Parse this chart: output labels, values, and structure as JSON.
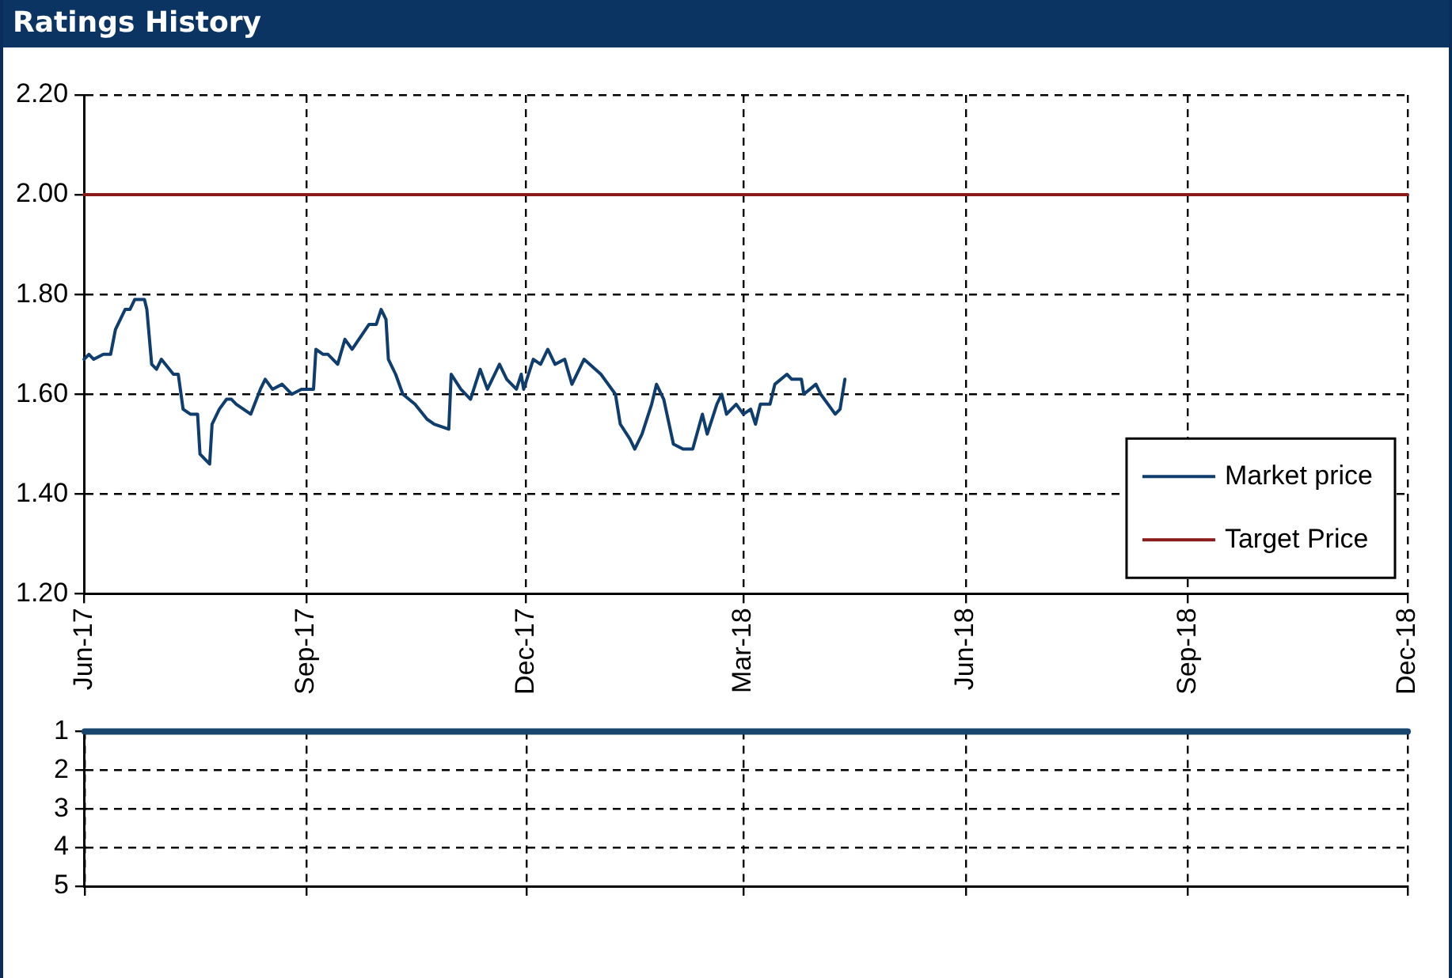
{
  "chart_data": [
    {
      "type": "line",
      "title": "Ratings History",
      "legend": "bottom right",
      "grid": true,
      "marker": "none",
      "line_style": "solid",
      "xlim": [
        "2017-06-01",
        "2018-12-01"
      ],
      "xticks": [
        {
          "value": "2017-06-01",
          "label": "Jun-17"
        },
        {
          "value": "2017-09-01",
          "label": "Sep-17"
        },
        {
          "value": "2017-12-01",
          "label": "Dec-17"
        },
        {
          "value": "2018-03-01",
          "label": "Mar-18"
        },
        {
          "value": "2018-06-01",
          "label": "Jun-18"
        },
        {
          "value": "2018-09-01",
          "label": "Sep-18"
        },
        {
          "value": "2018-12-01",
          "label": "Dec-18"
        }
      ],
      "ylim": [
        1.2,
        2.2
      ],
      "yticks": [
        {
          "value": 1.2,
          "label": "1.20"
        },
        {
          "value": 1.4,
          "label": "1.40"
        },
        {
          "value": 1.6,
          "label": "1.60"
        },
        {
          "value": 1.8,
          "label": "1.80"
        },
        {
          "value": 2.0,
          "label": "2.00"
        },
        {
          "value": 2.2,
          "label": "2.20"
        }
      ],
      "series": [
        {
          "name": "Market price",
          "color": "#0f3d6e",
          "x": [
            "2017-06-01",
            "2017-06-03",
            "2017-06-05",
            "2017-06-09",
            "2017-06-12",
            "2017-06-14",
            "2017-06-18",
            "2017-06-20",
            "2017-06-22",
            "2017-06-26",
            "2017-06-27",
            "2017-06-29",
            "2017-07-01",
            "2017-07-03",
            "2017-07-08",
            "2017-07-10",
            "2017-07-12",
            "2017-07-15",
            "2017-07-18",
            "2017-07-19",
            "2017-07-23",
            "2017-07-24",
            "2017-07-27",
            "2017-07-30",
            "2017-08-01",
            "2017-08-03",
            "2017-08-09",
            "2017-08-13",
            "2017-08-15",
            "2017-08-18",
            "2017-08-22",
            "2017-08-26",
            "2017-08-30",
            "2017-09-04",
            "2017-09-05",
            "2017-09-08",
            "2017-09-10",
            "2017-09-14",
            "2017-09-17",
            "2017-09-20",
            "2017-09-27",
            "2017-09-30",
            "2017-10-02",
            "2017-10-04",
            "2017-10-05",
            "2017-10-08",
            "2017-10-11",
            "2017-10-16",
            "2017-10-21",
            "2017-10-24",
            "2017-10-30",
            "2017-10-31",
            "2017-11-04",
            "2017-11-08",
            "2017-11-12",
            "2017-11-15",
            "2017-11-20",
            "2017-11-23",
            "2017-11-27",
            "2017-11-29",
            "2017-11-30",
            "2017-12-04",
            "2017-12-07",
            "2017-12-10",
            "2017-12-13",
            "2017-12-17",
            "2017-12-20",
            "2017-12-25",
            "2018-01-01",
            "2018-01-07",
            "2018-01-09",
            "2018-01-13",
            "2018-01-15",
            "2018-01-18",
            "2018-01-22",
            "2018-01-24",
            "2018-01-27",
            "2018-01-31",
            "2018-02-04",
            "2018-02-08",
            "2018-02-12",
            "2018-02-14",
            "2018-02-18",
            "2018-02-20",
            "2018-02-22",
            "2018-02-26",
            "2018-03-01",
            "2018-03-04",
            "2018-03-06",
            "2018-03-08",
            "2018-03-12",
            "2018-03-14",
            "2018-03-19",
            "2018-03-21",
            "2018-03-25",
            "2018-03-26",
            "2018-03-31",
            "2018-04-02",
            "2018-04-08",
            "2018-04-10",
            "2018-04-12"
          ],
          "values": [
            1.67,
            1.68,
            1.67,
            1.68,
            1.68,
            1.73,
            1.77,
            1.77,
            1.79,
            1.79,
            1.77,
            1.66,
            1.65,
            1.67,
            1.64,
            1.64,
            1.57,
            1.56,
            1.56,
            1.48,
            1.46,
            1.54,
            1.57,
            1.59,
            1.59,
            1.58,
            1.56,
            1.61,
            1.63,
            1.61,
            1.62,
            1.6,
            1.61,
            1.61,
            1.69,
            1.68,
            1.68,
            1.66,
            1.71,
            1.69,
            1.74,
            1.74,
            1.77,
            1.75,
            1.67,
            1.64,
            1.6,
            1.58,
            1.55,
            1.54,
            1.53,
            1.64,
            1.61,
            1.59,
            1.65,
            1.61,
            1.66,
            1.63,
            1.61,
            1.64,
            1.61,
            1.67,
            1.66,
            1.69,
            1.66,
            1.67,
            1.62,
            1.67,
            1.64,
            1.6,
            1.54,
            1.51,
            1.49,
            1.52,
            1.58,
            1.62,
            1.59,
            1.5,
            1.49,
            1.49,
            1.56,
            1.52,
            1.58,
            1.6,
            1.56,
            1.58,
            1.56,
            1.57,
            1.54,
            1.58,
            1.58,
            1.62,
            1.64,
            1.63,
            1.63,
            1.6,
            1.62,
            1.6,
            1.56,
            1.57,
            1.63
          ]
        },
        {
          "name": "Target Price",
          "color": "#8b1a1a",
          "x": [
            "2017-06-01",
            "2018-12-01"
          ],
          "values": [
            2.0,
            2.0
          ]
        }
      ]
    },
    {
      "type": "line",
      "grid": true,
      "marker": "none",
      "line_style": "solid",
      "tick_labels": "y",
      "xlim": [
        "2017-06-01",
        "2018-12-01"
      ],
      "ylim": [
        5,
        1
      ],
      "yticks": [
        1,
        2,
        3,
        4,
        5
      ],
      "xticks": [
        {
          "value": "2017-06-01",
          "label": null
        },
        {
          "value": "2017-09-01",
          "label": null
        },
        {
          "value": "2017-12-01",
          "label": null
        },
        {
          "value": "2018-03-01",
          "label": null
        },
        {
          "value": "2018-06-01",
          "label": null
        },
        {
          "value": "2018-09-01",
          "label": null
        },
        {
          "value": "2018-12-01",
          "label": null
        }
      ],
      "series": [
        {
          "color": "#17456e",
          "x": [
            "2017-06-01",
            "2018-12-01"
          ],
          "values": [
            1,
            1
          ]
        }
      ]
    }
  ]
}
